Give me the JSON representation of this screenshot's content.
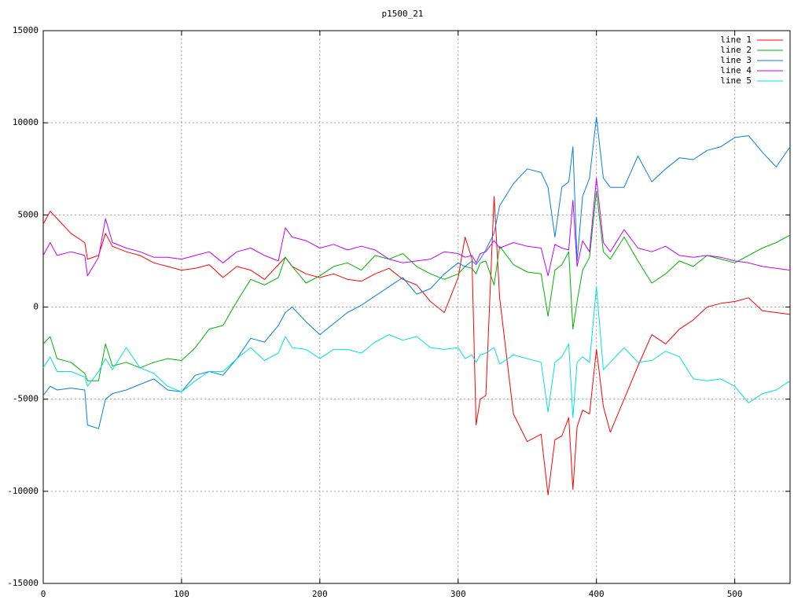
{
  "chart_data": {
    "type": "line",
    "title": "p1500_21",
    "x": [
      0,
      5,
      10,
      20,
      30,
      32,
      40,
      45,
      50,
      60,
      70,
      80,
      90,
      100,
      110,
      120,
      130,
      140,
      150,
      160,
      170,
      175,
      180,
      190,
      200,
      210,
      220,
      230,
      240,
      250,
      260,
      270,
      280,
      290,
      300,
      305,
      310,
      313,
      316,
      320,
      326,
      330,
      340,
      350,
      360,
      365,
      370,
      375,
      380,
      383,
      386,
      390,
      395,
      400,
      405,
      410,
      420,
      430,
      440,
      450,
      460,
      470,
      480,
      490,
      500,
      510,
      520,
      530,
      540
    ],
    "series": [
      {
        "name": "line 1",
        "color": "#ff0000",
        "values": [
          4500,
          5200,
          4800,
          4000,
          3500,
          2600,
          2800,
          4000,
          3300,
          3000,
          2800,
          2400,
          2200,
          2000,
          2100,
          2300,
          1600,
          2200,
          2000,
          1500,
          2300,
          2700,
          2200,
          1800,
          1600,
          1800,
          1500,
          1400,
          1800,
          2100,
          1500,
          1200,
          300,
          -300,
          1600,
          3800,
          2600,
          -6400,
          -5000,
          -4800,
          6000,
          500,
          -5800,
          -7300,
          -6900,
          -10200,
          -7200,
          -7000,
          -6000,
          -9900,
          -6500,
          -5600,
          -5800,
          -2300,
          -5400,
          -6800,
          -5000,
          -3200,
          -1500,
          -2000,
          -1200,
          -700,
          0,
          200,
          300,
          500,
          -200,
          -300,
          -400
        ]
      },
      {
        "name": "line 2",
        "color": "#00b000",
        "values": [
          -2000,
          -1600,
          -2800,
          -3000,
          -3600,
          -4000,
          -4000,
          -2000,
          -3200,
          -3000,
          -3300,
          -3000,
          -2800,
          -2900,
          -2200,
          -1200,
          -1000,
          300,
          1500,
          1200,
          1600,
          2700,
          2200,
          1300,
          1700,
          2200,
          2400,
          2000,
          2800,
          2600,
          2900,
          2200,
          1800,
          1500,
          1800,
          2200,
          2100,
          1800,
          2400,
          2500,
          1200,
          3300,
          2300,
          1900,
          1800,
          -500,
          2000,
          2300,
          3000,
          -1200,
          300,
          2000,
          2700,
          6300,
          3000,
          2600,
          3800,
          2500,
          1300,
          1800,
          2500,
          2200,
          2800,
          2600,
          2400,
          2800,
          3200,
          3500,
          3900
        ]
      },
      {
        "name": "line 3",
        "color": "#0080e0",
        "values": [
          -4800,
          -4300,
          -4500,
          -4400,
          -4500,
          -6400,
          -6600,
          -5000,
          -4700,
          -4500,
          -4200,
          -3900,
          -4500,
          -4600,
          -3700,
          -3500,
          -3700,
          -2800,
          -1700,
          -1900,
          -1000,
          -300,
          0,
          -800,
          -1500,
          -900,
          -300,
          100,
          600,
          1100,
          1600,
          700,
          1000,
          1800,
          2400,
          2200,
          2500,
          2300,
          2600,
          3100,
          4000,
          5500,
          6700,
          7500,
          7300,
          6500,
          3800,
          6500,
          6800,
          8700,
          2500,
          6000,
          7000,
          10300,
          7000,
          6500,
          6500,
          8200,
          6800,
          7500,
          8100,
          8000,
          8500,
          8700,
          9200,
          9300,
          8400,
          7600,
          8700
        ]
      },
      {
        "name": "line 4",
        "color": "#c000ff",
        "values": [
          2800,
          3500,
          2800,
          3000,
          2800,
          1700,
          2700,
          4800,
          3500,
          3200,
          3000,
          2700,
          2700,
          2600,
          2800,
          3000,
          2400,
          3000,
          3200,
          2800,
          2500,
          4300,
          3800,
          3600,
          3200,
          3400,
          3100,
          3300,
          3100,
          2600,
          2400,
          2500,
          2600,
          3000,
          2900,
          2700,
          2800,
          2400,
          2900,
          3000,
          3600,
          3200,
          3500,
          3300,
          3200,
          1700,
          3400,
          3200,
          3100,
          5800,
          2200,
          3600,
          3000,
          7000,
          3500,
          3000,
          4200,
          3200,
          3000,
          3300,
          2800,
          2700,
          2800,
          2700,
          2500,
          2400,
          2200,
          2100,
          2000
        ]
      },
      {
        "name": "line 5",
        "color": "#00e0e0",
        "values": [
          -3300,
          -2700,
          -3500,
          -3500,
          -3800,
          -4300,
          -3500,
          -2800,
          -3400,
          -2200,
          -3300,
          -3600,
          -4300,
          -4600,
          -4000,
          -3500,
          -3500,
          -2800,
          -2200,
          -2900,
          -2500,
          -1600,
          -2200,
          -2300,
          -2800,
          -2300,
          -2300,
          -2500,
          -1900,
          -1500,
          -1800,
          -1600,
          -2200,
          -2300,
          -2200,
          -2800,
          -2600,
          -3000,
          -2600,
          -2500,
          -2200,
          -3100,
          -2600,
          -2800,
          -3000,
          -5700,
          -3000,
          -2700,
          -2000,
          -6000,
          -3000,
          -2700,
          -3000,
          1100,
          -3400,
          -3000,
          -2200,
          -3000,
          -2900,
          -2400,
          -2700,
          -3900,
          -4000,
          -3900,
          -4300,
          -5200,
          -4700,
          -4500,
          -4000
        ]
      }
    ],
    "xlim": [
      0,
      540
    ],
    "xticks": [
      0,
      100,
      200,
      300,
      400,
      500
    ],
    "ylim": [
      -15000,
      15000
    ],
    "yticks": [
      -15000,
      -10000,
      -5000,
      0,
      5000,
      10000,
      15000
    ],
    "grid": true,
    "legend": "top-right"
  }
}
